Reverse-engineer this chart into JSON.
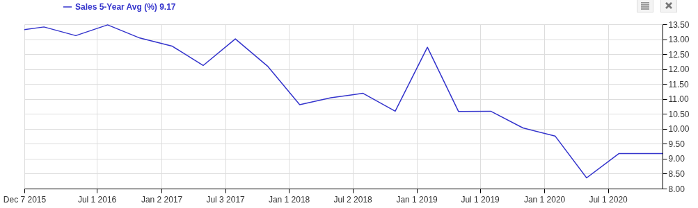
{
  "chart_data": {
    "type": "line",
    "legend": "top left",
    "grid": true,
    "marker": "none",
    "line_style": "solid",
    "x": [
      "2015-12-07",
      "2016-02-01",
      "2016-05-02",
      "2016-08-01",
      "2016-11-01",
      "2017-02-01",
      "2017-05-01",
      "2017-08-01",
      "2017-11-01",
      "2018-02-01",
      "2018-05-01",
      "2018-08-01",
      "2018-11-01",
      "2019-02-01",
      "2019-05-01",
      "2019-08-01",
      "2019-11-01",
      "2020-02-01",
      "2020-05-01",
      "2020-08-01",
      "2020-12-04"
    ],
    "series": [
      {
        "name": "Sales 5-Year Avg (%) 9.17",
        "color": "#3333cc",
        "values": [
          13.32,
          13.41,
          13.12,
          13.48,
          13.04,
          12.77,
          12.12,
          13.01,
          12.1,
          10.81,
          11.04,
          11.19,
          10.59,
          12.73,
          10.58,
          10.59,
          10.03,
          9.76,
          8.36,
          9.17,
          9.17
        ]
      }
    ],
    "xlim": [
      "2015-12-07",
      "2020-12-04"
    ],
    "xticks": [
      {
        "value": "2015-12-07",
        "label": "Dec 7 2015"
      },
      {
        "value": "2016-07-01",
        "label": "Jul 1 2016"
      },
      {
        "value": "2017-01-02",
        "label": "Jan 2 2017"
      },
      {
        "value": "2017-07-03",
        "label": "Jul 3 2017"
      },
      {
        "value": "2018-01-01",
        "label": "Jan 1 2018"
      },
      {
        "value": "2018-07-02",
        "label": "Jul 2 2018"
      },
      {
        "value": "2019-01-01",
        "label": "Jan 1 2019"
      },
      {
        "value": "2019-07-01",
        "label": "Jul 1 2019"
      },
      {
        "value": "2020-01-01",
        "label": "Jan 1 2020"
      },
      {
        "value": "2020-07-01",
        "label": "Jul 1 2020"
      }
    ],
    "ylim": [
      8,
      13.5
    ],
    "yticks": [
      {
        "value": 8,
        "label": "8.00"
      },
      {
        "value": 8.5,
        "label": "8.50"
      },
      {
        "value": 9,
        "label": "9.00"
      },
      {
        "value": 9.5,
        "label": "9.50"
      },
      {
        "value": 10,
        "label": "10.00"
      },
      {
        "value": 10.5,
        "label": "10.50"
      },
      {
        "value": 11,
        "label": "11.00"
      },
      {
        "value": 11.5,
        "label": "11.50"
      },
      {
        "value": 12,
        "label": "12.00"
      },
      {
        "value": 12.5,
        "label": "12.50"
      },
      {
        "value": 13,
        "label": "13.00"
      },
      {
        "value": 13.5,
        "label": "13.50"
      }
    ]
  }
}
